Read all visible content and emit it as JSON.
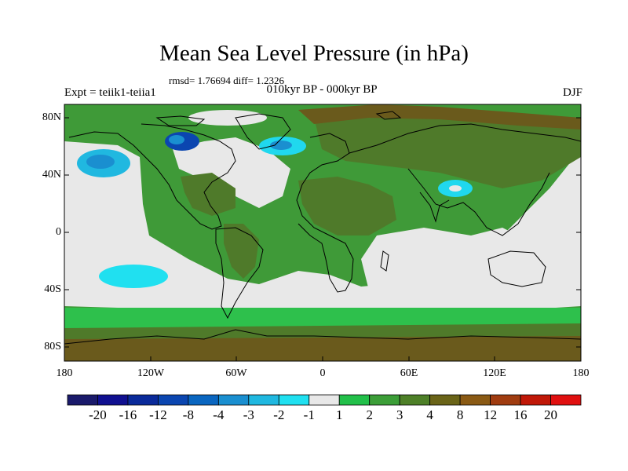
{
  "title": "Mean Sea Level Pressure (in hPa)",
  "stats_line": "rmsd= 1.76694 diff= 1.2326",
  "experiment": "Expt = teiik1-teiia1",
  "period": "010kyr BP - 000kyr BP",
  "season": "DJF",
  "lat_labels": [
    "80N",
    "40N",
    "0",
    "40S",
    "80S"
  ],
  "lon_labels": [
    "180",
    "120W",
    "60W",
    "0",
    "60E",
    "120E",
    "180"
  ],
  "colorbar": {
    "labels": [
      "-20",
      "-16",
      "-12",
      "-8",
      "-4",
      "-3",
      "-2",
      "-1",
      "1",
      "2",
      "3",
      "4",
      "8",
      "12",
      "16",
      "20"
    ],
    "colors": [
      "#1a1a6b",
      "#101090",
      "#0a2a9a",
      "#0b46b0",
      "#0a66c0",
      "#1a8fd0",
      "#20b8e0",
      "#20e0f0",
      "#e8e8e8",
      "#22c04a",
      "#3c9e38",
      "#4e8028",
      "#6a6418",
      "#8a5a14",
      "#a03c10",
      "#c01808",
      "#e01010"
    ]
  },
  "map_colors": {
    "neutral": "#e8e8e8",
    "green_light": "#2ec04c",
    "green_mid": "#3f9a38",
    "olive": "#4f7a2a",
    "brown": "#6a5a1c",
    "cyan": "#20d8ee",
    "blue": "#1a8fd0",
    "deep_blue": "#0b46b0",
    "coast": "#000000"
  }
}
